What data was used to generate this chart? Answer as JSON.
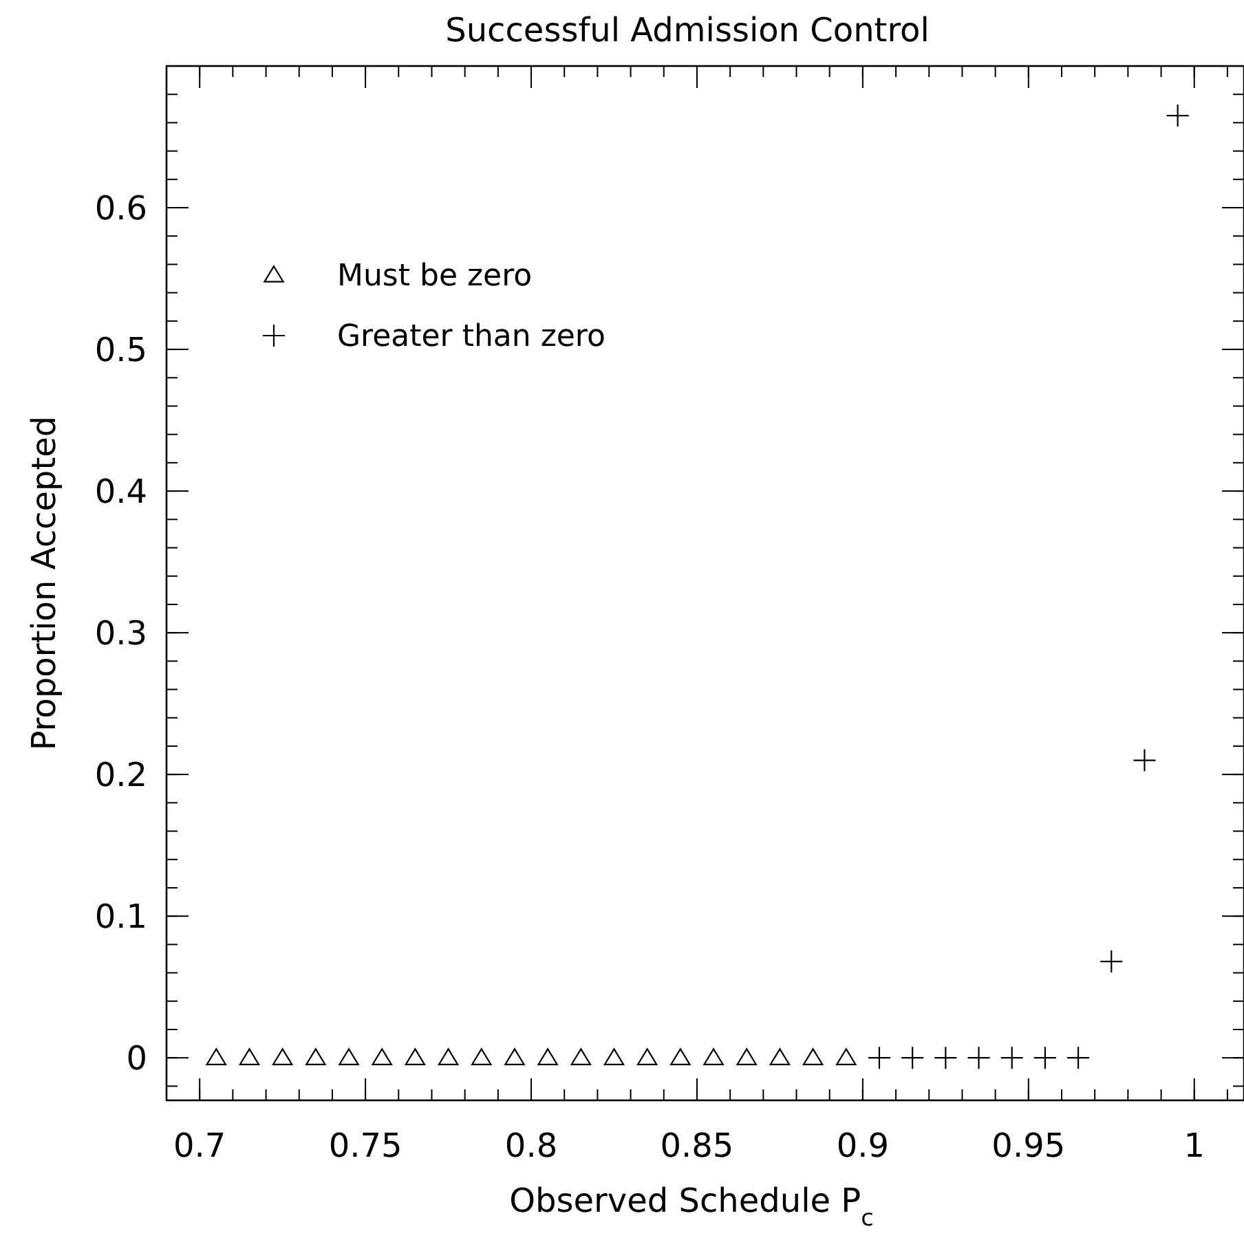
{
  "chart_data": {
    "type": "scatter",
    "title": "Successful Admission Control",
    "xlabel": "Observed Schedule P$_{c}$",
    "ylabel": "Proportion Accepted",
    "xlim": [
      0.69,
      1.015
    ],
    "xticks": [
      0.7,
      0.75,
      0.8,
      0.85,
      0.9,
      0.95,
      1
    ],
    "ylim": [
      -0.03,
      0.7
    ],
    "yticks": [
      0,
      0.1,
      0.2,
      0.3,
      0.4,
      0.5,
      0.6
    ],
    "grid": false,
    "legend": "top left",
    "series": [
      {
        "name": "Must be zero",
        "color": "#000000",
        "marker": "triangle",
        "x": [
          0.705,
          0.715,
          0.725,
          0.735,
          0.745,
          0.755,
          0.765,
          0.775,
          0.785,
          0.795,
          0.805,
          0.815,
          0.825,
          0.835,
          0.845,
          0.855,
          0.865,
          0.875,
          0.885,
          0.895
        ],
        "values": [
          0,
          0,
          0,
          0,
          0,
          0,
          0,
          0,
          0,
          0,
          0,
          0,
          0,
          0,
          0,
          0,
          0,
          0,
          0,
          0
        ]
      },
      {
        "name": "Greater than zero",
        "color": "#000000",
        "marker": "cross",
        "x": [
          0.905,
          0.915,
          0.925,
          0.935,
          0.945,
          0.955,
          0.965,
          0.975,
          0.985,
          0.995
        ],
        "values": [
          0,
          0,
          0,
          0,
          0,
          0,
          0,
          0.068,
          0.21,
          0.665
        ]
      }
    ]
  }
}
